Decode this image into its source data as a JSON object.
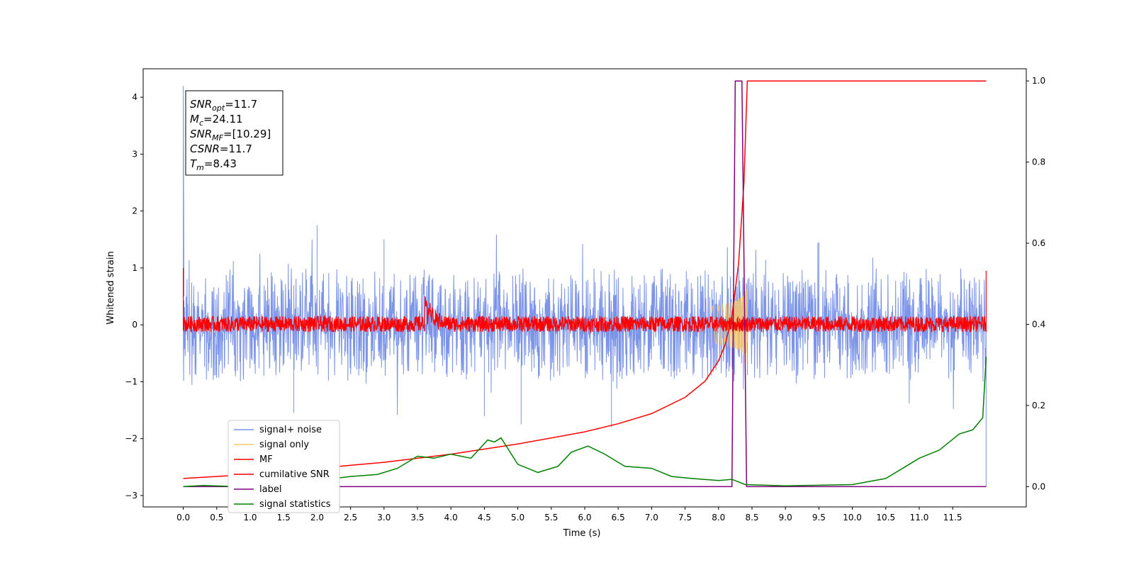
{
  "chart_data": {
    "type": "line",
    "xlabel": "Time (s)",
    "ylabel_left": "Whitened strain",
    "ylabel_right": "",
    "xlim": [
      -0.6,
      12.6
    ],
    "ylim_left": [
      -3.2,
      4.5
    ],
    "ylim_right": [
      -0.05,
      1.03
    ],
    "grid": false,
    "legend_placement": "lower-left",
    "x_ticks": [
      0.0,
      0.5,
      1.0,
      1.5,
      2.0,
      2.5,
      3.0,
      3.5,
      4.0,
      4.5,
      5.0,
      5.5,
      6.0,
      6.5,
      7.0,
      7.5,
      8.0,
      8.5,
      9.0,
      9.5,
      10.0,
      10.5,
      11.0,
      11.5
    ],
    "x_tick_labels": [
      "0.0",
      "0.5",
      "1.0",
      "1.5",
      "2.0",
      "2.5",
      "3.0",
      "3.5",
      "4.0",
      "4.5",
      "5.0",
      "5.5",
      "6.0",
      "6.5",
      "7.0",
      "7.5",
      "8.0",
      "8.5",
      "9.0",
      "9.5",
      "10.0",
      "10.5",
      "11.0",
      "11.5"
    ],
    "y_left_ticks": [
      -3,
      -2,
      -1,
      0,
      1,
      2,
      3,
      4
    ],
    "y_left_tick_labels": [
      "−3",
      "−2",
      "−1",
      "0",
      "1",
      "2",
      "3",
      "4"
    ],
    "y_right_ticks": [
      0.0,
      0.2,
      0.4,
      0.6,
      0.8,
      1.0
    ],
    "y_right_tick_labels": [
      "0.0",
      "0.2",
      "0.4",
      "0.6",
      "0.8",
      "1.0"
    ],
    "annotation_lines": [
      {
        "main": "SNR",
        "sub": "opt",
        "rest": "=11.7"
      },
      {
        "main": "M",
        "sub": "c",
        "rest": "=24.11"
      },
      {
        "main": "SNR",
        "sub": "MF",
        "rest": "=[10.29]"
      },
      {
        "main": "CSNR",
        "sub": "",
        "rest": "=11.7"
      },
      {
        "main": "T",
        "sub": "m",
        "rest": "=8.43"
      }
    ],
    "series": [
      {
        "name": "signal+ noise",
        "color": "#7b93e8",
        "axis": "left",
        "kind": "noise",
        "band": [
          -0.9,
          1.0
        ],
        "start_spike": 4.2,
        "end_spike": -2.85,
        "peaks": [
          {
            "x": 1.65,
            "y": -1.55
          },
          {
            "x": 2.0,
            "y": 1.75
          },
          {
            "x": 4.5,
            "y": -1.6
          },
          {
            "x": 5.05,
            "y": -1.75
          },
          {
            "x": 6.4,
            "y": -1.8
          },
          {
            "x": 3.0,
            "y": 1.5
          },
          {
            "x": 9.5,
            "y": 1.45
          }
        ]
      },
      {
        "name": "signal only",
        "color": "#f5c86a",
        "axis": "left",
        "kind": "chirp",
        "start": 7.9,
        "end": 8.43,
        "peak_amp": 0.75
      },
      {
        "name": "MF",
        "color": "#ff0000",
        "axis": "left",
        "kind": "mf",
        "band": [
          -0.15,
          0.2
        ],
        "bump_x": 3.6,
        "bump_y": 0.55
      },
      {
        "name": "cumilative SNR",
        "color": "#ff0000",
        "axis": "right",
        "points": [
          [
            0.0,
            0.02
          ],
          [
            1.0,
            0.03
          ],
          [
            2.0,
            0.045
          ],
          [
            3.0,
            0.06
          ],
          [
            4.0,
            0.08
          ],
          [
            5.0,
            0.105
          ],
          [
            6.0,
            0.135
          ],
          [
            6.5,
            0.155
          ],
          [
            7.0,
            0.18
          ],
          [
            7.5,
            0.22
          ],
          [
            7.8,
            0.26
          ],
          [
            8.0,
            0.31
          ],
          [
            8.1,
            0.35
          ],
          [
            8.2,
            0.42
          ],
          [
            8.3,
            0.55
          ],
          [
            8.38,
            0.75
          ],
          [
            8.43,
            1.0
          ],
          [
            12.0,
            1.0
          ]
        ]
      },
      {
        "name": "label",
        "color": "#800080",
        "axis": "right",
        "points": [
          [
            0.0,
            0.0
          ],
          [
            8.2,
            0.0
          ],
          [
            8.25,
            1.0
          ],
          [
            8.35,
            1.0
          ],
          [
            8.42,
            0.0
          ],
          [
            12.0,
            0.0
          ]
        ]
      },
      {
        "name": "signal statistics",
        "color": "#008000",
        "axis": "right",
        "points": [
          [
            0.0,
            0.0
          ],
          [
            0.3,
            0.003
          ],
          [
            0.8,
            0.0
          ],
          [
            1.5,
            0.01
          ],
          [
            2.0,
            0.015
          ],
          [
            2.5,
            0.025
          ],
          [
            2.9,
            0.03
          ],
          [
            3.2,
            0.045
          ],
          [
            3.5,
            0.075
          ],
          [
            3.75,
            0.07
          ],
          [
            4.0,
            0.08
          ],
          [
            4.3,
            0.07
          ],
          [
            4.55,
            0.115
          ],
          [
            4.65,
            0.11
          ],
          [
            4.75,
            0.12
          ],
          [
            5.0,
            0.055
          ],
          [
            5.3,
            0.035
          ],
          [
            5.6,
            0.05
          ],
          [
            5.8,
            0.085
          ],
          [
            6.05,
            0.1
          ],
          [
            6.3,
            0.08
          ],
          [
            6.6,
            0.05
          ],
          [
            7.0,
            0.045
          ],
          [
            7.3,
            0.025
          ],
          [
            7.6,
            0.02
          ],
          [
            8.0,
            0.015
          ],
          [
            8.2,
            0.018
          ],
          [
            8.4,
            0.005
          ],
          [
            9.0,
            0.002
          ],
          [
            10.0,
            0.005
          ],
          [
            10.5,
            0.02
          ],
          [
            10.8,
            0.05
          ],
          [
            11.0,
            0.07
          ],
          [
            11.3,
            0.09
          ],
          [
            11.6,
            0.13
          ],
          [
            11.8,
            0.14
          ],
          [
            11.95,
            0.17
          ],
          [
            12.0,
            0.32
          ]
        ]
      }
    ]
  }
}
